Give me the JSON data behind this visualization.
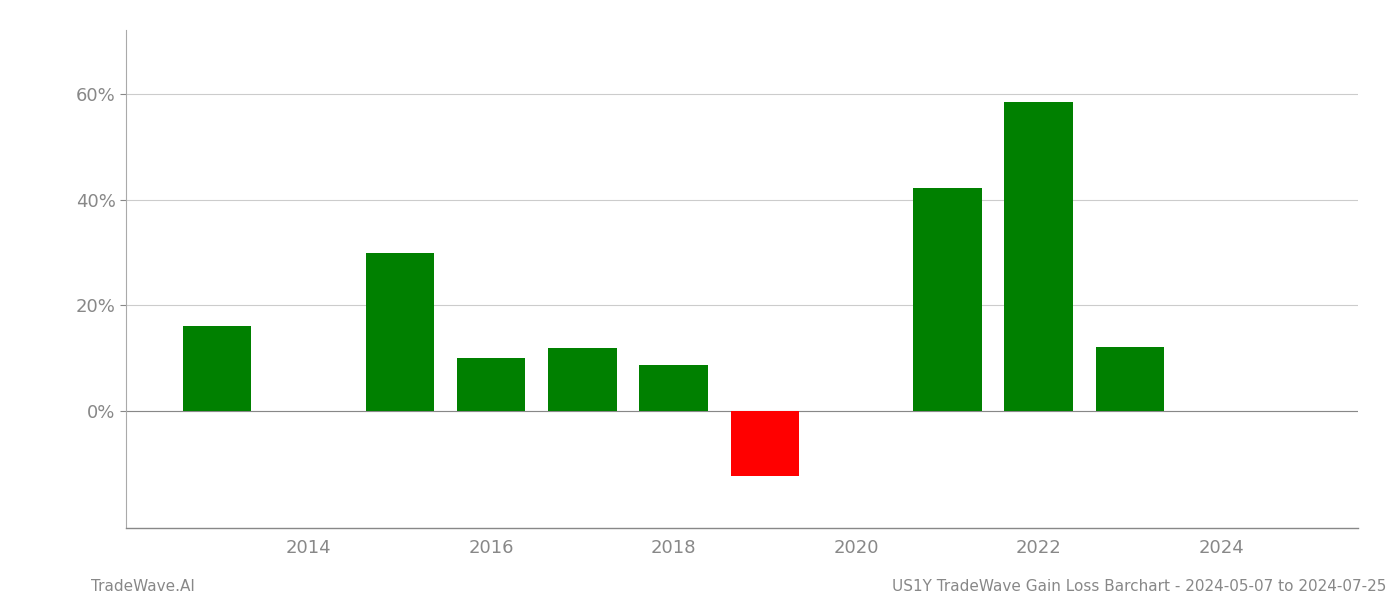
{
  "years": [
    2013,
    2015,
    2016,
    2017,
    2018,
    2019,
    2021,
    2022,
    2023
  ],
  "values": [
    0.162,
    0.3,
    0.101,
    0.12,
    0.088,
    -0.122,
    0.422,
    0.585,
    0.122
  ],
  "colors": [
    "#008000",
    "#008000",
    "#008000",
    "#008000",
    "#008000",
    "#ff0000",
    "#008000",
    "#008000",
    "#008000"
  ],
  "xlim": [
    2012.0,
    2025.5
  ],
  "ylim": [
    -0.22,
    0.72
  ],
  "yticks": [
    0.0,
    0.2,
    0.4,
    0.6
  ],
  "ytick_labels": [
    "0%",
    "20%",
    "40%",
    "60%"
  ],
  "xticks": [
    2014,
    2016,
    2018,
    2020,
    2022,
    2024
  ],
  "bar_width": 0.75,
  "background_color": "#ffffff",
  "grid_color": "#cccccc",
  "footer_left": "TradeWave.AI",
  "footer_right": "US1Y TradeWave Gain Loss Barchart - 2024-05-07 to 2024-07-25",
  "footer_color": "#888888",
  "axis_color": "#888888",
  "tick_color": "#888888",
  "left_spine_color": "#aaaaaa",
  "figsize": [
    14.0,
    6.0
  ],
  "dpi": 100
}
